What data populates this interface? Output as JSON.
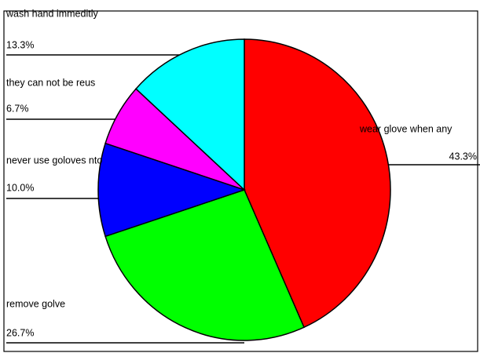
{
  "chart_data": {
    "type": "pie",
    "categories": [
      "wear glove when any",
      "remove golve",
      "never use goloves nto",
      "they can not be reus",
      "wash hand immeditly"
    ],
    "values": [
      43.3,
      26.7,
      10.0,
      6.7,
      13.3
    ],
    "value_labels": [
      "43.3%",
      "26.7%",
      "10.0%",
      "6.7%",
      "13.3%"
    ],
    "colors": [
      "#ff0000",
      "#00ff00",
      "#0000ff",
      "#ff00ff",
      "#00ffff"
    ]
  }
}
